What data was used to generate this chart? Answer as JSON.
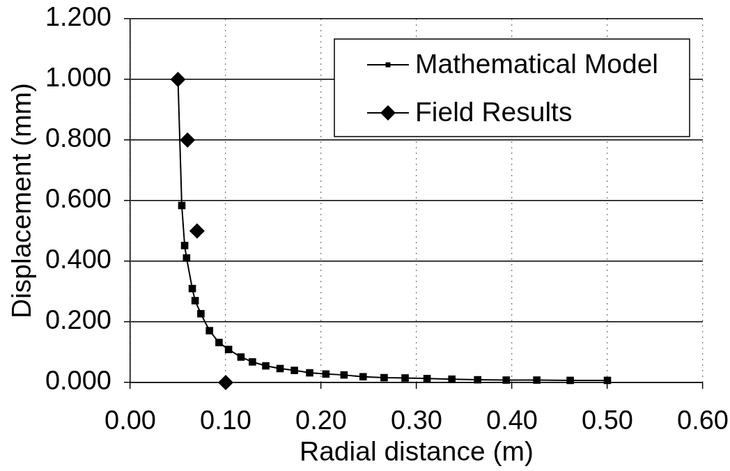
{
  "chart_data": {
    "type": "line",
    "xlabel": "Radial distance (m)",
    "ylabel": "Displacement (mm)",
    "xlim": [
      0,
      0.6
    ],
    "xticks": [
      {
        "value": 0,
        "label": "0.00"
      },
      {
        "value": 0.1,
        "label": "0.10"
      },
      {
        "value": 0.2,
        "label": "0.20"
      },
      {
        "value": 0.3,
        "label": "0.30"
      },
      {
        "value": 0.4,
        "label": "0.40"
      },
      {
        "value": 0.5,
        "label": "0.50"
      },
      {
        "value": 0.6,
        "label": "0.60"
      }
    ],
    "ylim": [
      0,
      1.2
    ],
    "yticks": [
      {
        "value": 0,
        "label": "0.000"
      },
      {
        "value": 0.2,
        "label": "0.200"
      },
      {
        "value": 0.4,
        "label": "0.400"
      },
      {
        "value": 0.6,
        "label": "0.600"
      },
      {
        "value": 0.8,
        "label": "0.800"
      },
      {
        "value": 1,
        "label": "1.000"
      },
      {
        "value": 1.2,
        "label": "1.200"
      }
    ],
    "grid": true,
    "legend": "top right",
    "series": [
      {
        "name": "Mathematical Model",
        "marker": "square",
        "color": "#000000",
        "x": [
          0.05,
          0.054,
          0.057,
          0.059,
          0.065,
          0.068,
          0.074,
          0.083,
          0.093,
          0.103,
          0.116,
          0.128,
          0.142,
          0.157,
          0.172,
          0.188,
          0.205,
          0.224,
          0.244,
          0.266,
          0.288,
          0.311,
          0.337,
          0.364,
          0.394,
          0.426,
          0.461,
          0.5
        ],
        "values": [
          1.0,
          0.584,
          0.452,
          0.411,
          0.31,
          0.27,
          0.227,
          0.171,
          0.132,
          0.109,
          0.084,
          0.068,
          0.055,
          0.046,
          0.04,
          0.032,
          0.028,
          0.025,
          0.019,
          0.016,
          0.015,
          0.013,
          0.011,
          0.009,
          0.008,
          0.008,
          0.007,
          0.007
        ]
      },
      {
        "name": "Field Results",
        "type": "scatter",
        "marker": "diamond",
        "color": "#000000",
        "x": [
          0.05,
          0.06,
          0.07,
          0.1
        ],
        "values": [
          1.0,
          0.8,
          0.5,
          0.0
        ]
      }
    ]
  }
}
